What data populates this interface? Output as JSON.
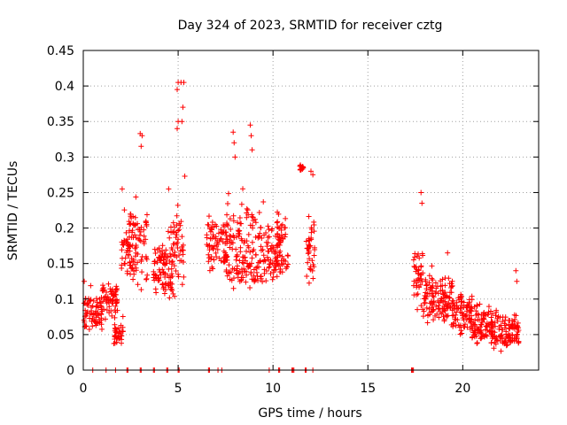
{
  "chart_data": {
    "type": "scatter",
    "title": "Day 324 of 2023, SRMTID for receiver cztg",
    "xlabel": "GPS time / hours",
    "ylabel": "SRMTID / TECUs",
    "xlim": [
      0,
      24
    ],
    "ylim": [
      0,
      0.45
    ],
    "xticks": [
      0,
      5,
      10,
      15,
      20
    ],
    "yticks": [
      0,
      0.05,
      0.1,
      0.15,
      0.2,
      0.25,
      0.3,
      0.35,
      0.4,
      0.45
    ],
    "ytick_labels": [
      "0",
      "0.05",
      "0.1",
      "0.15",
      "0.2",
      "0.25",
      "0.3",
      "0.35",
      "0.4",
      "0.45"
    ],
    "xtick_labels": [
      "0",
      "5",
      "10",
      "15",
      "20"
    ],
    "grid": true,
    "marker": "+",
    "color": "#ff0000",
    "series": [
      {
        "name": "SRMTID",
        "clusters": [
          {
            "x0": 0.0,
            "x1": 1.0,
            "ymin": 0.04,
            "ymax": 0.13,
            "center": 0.075,
            "peaks": [
              [
                0.05,
                0.125
              ]
            ]
          },
          {
            "x0": 1.0,
            "x1": 1.8,
            "ymin": 0.06,
            "ymax": 0.14,
            "center": 0.1,
            "peaks": []
          },
          {
            "x0": 1.6,
            "x1": 2.1,
            "ymin": 0.02,
            "ymax": 0.08,
            "center": 0.05,
            "peaks": []
          },
          {
            "x0": 2.0,
            "x1": 2.5,
            "ymin": 0.1,
            "ymax": 0.25,
            "center": 0.17,
            "peaks": [
              [
                2.05,
                0.255
              ]
            ]
          },
          {
            "x0": 2.4,
            "x1": 3.4,
            "ymin": 0.08,
            "ymax": 0.27,
            "center": 0.17,
            "peaks": [
              [
                3.0,
                0.333
              ],
              [
                3.1,
                0.33
              ],
              [
                3.05,
                0.315
              ]
            ]
          },
          {
            "x0": 3.7,
            "x1": 4.4,
            "ymin": 0.09,
            "ymax": 0.19,
            "center": 0.15,
            "peaks": []
          },
          {
            "x0": 4.2,
            "x1": 4.7,
            "ymin": 0.08,
            "ymax": 0.25,
            "center": 0.14,
            "peaks": [
              [
                4.5,
                0.255
              ]
            ]
          },
          {
            "x0": 4.6,
            "x1": 5.3,
            "ymin": 0.07,
            "ymax": 0.27,
            "center": 0.16,
            "peaks": [
              [
                5.0,
                0.405
              ],
              [
                5.15,
                0.405
              ],
              [
                5.3,
                0.405
              ],
              [
                4.95,
                0.395
              ],
              [
                5.25,
                0.37
              ],
              [
                5.0,
                0.35
              ],
              [
                5.2,
                0.35
              ],
              [
                4.95,
                0.34
              ],
              [
                5.35,
                0.273
              ]
            ]
          },
          {
            "x0": 6.5,
            "x1": 7.6,
            "ymin": 0.13,
            "ymax": 0.24,
            "center": 0.175,
            "peaks": []
          },
          {
            "x0": 7.5,
            "x1": 8.4,
            "ymin": 0.09,
            "ymax": 0.27,
            "center": 0.17,
            "peaks": [
              [
                7.9,
                0.335
              ],
              [
                7.95,
                0.32
              ],
              [
                8.0,
                0.3
              ]
            ]
          },
          {
            "x0": 8.3,
            "x1": 9.4,
            "ymin": 0.09,
            "ymax": 0.29,
            "center": 0.16,
            "peaks": [
              [
                8.8,
                0.345
              ],
              [
                8.85,
                0.33
              ],
              [
                8.9,
                0.31
              ]
            ]
          },
          {
            "x0": 9.3,
            "x1": 10.4,
            "ymin": 0.09,
            "ymax": 0.25,
            "center": 0.155,
            "peaks": []
          },
          {
            "x0": 10.2,
            "x1": 10.8,
            "ymin": 0.12,
            "ymax": 0.24,
            "center": 0.17,
            "peaks": []
          },
          {
            "x0": 11.4,
            "x1": 11.6,
            "ymin": 0.28,
            "ymax": 0.29,
            "center": 0.285,
            "peaks": []
          },
          {
            "x0": 11.7,
            "x1": 12.2,
            "ymin": 0.09,
            "ymax": 0.23,
            "center": 0.17,
            "peaks": [
              [
                12.0,
                0.28
              ],
              [
                12.1,
                0.275
              ]
            ]
          },
          {
            "x0": 17.4,
            "x1": 17.9,
            "ymin": 0.08,
            "ymax": 0.2,
            "center": 0.13,
            "peaks": [
              [
                17.8,
                0.25
              ],
              [
                17.85,
                0.235
              ]
            ]
          },
          {
            "x0": 17.8,
            "x1": 19.5,
            "ymin": 0.05,
            "ymax": 0.16,
            "center": 0.1,
            "peaks": [
              [
                19.2,
                0.165
              ]
            ]
          },
          {
            "x0": 19.4,
            "x1": 20.5,
            "ymin": 0.04,
            "ymax": 0.13,
            "center": 0.08,
            "peaks": []
          },
          {
            "x0": 20.4,
            "x1": 21.6,
            "ymin": 0.025,
            "ymax": 0.12,
            "center": 0.06,
            "peaks": []
          },
          {
            "x0": 21.5,
            "x1": 23.0,
            "ymin": 0.025,
            "ymax": 0.1,
            "center": 0.05,
            "peaks": [
              [
                22.8,
                0.14
              ],
              [
                22.85,
                0.125
              ]
            ]
          }
        ],
        "zero_markers": [
          0.5,
          1.2,
          1.7,
          2.3,
          2.35,
          3.0,
          3.05,
          3.7,
          3.75,
          4.4,
          4.45,
          5.0,
          5.05,
          6.6,
          6.65,
          7.1,
          7.3,
          9.8,
          10.3,
          10.35,
          11.0,
          11.05,
          11.1,
          11.7,
          11.75,
          12.1,
          17.3,
          17.35,
          17.4
        ]
      }
    ]
  }
}
